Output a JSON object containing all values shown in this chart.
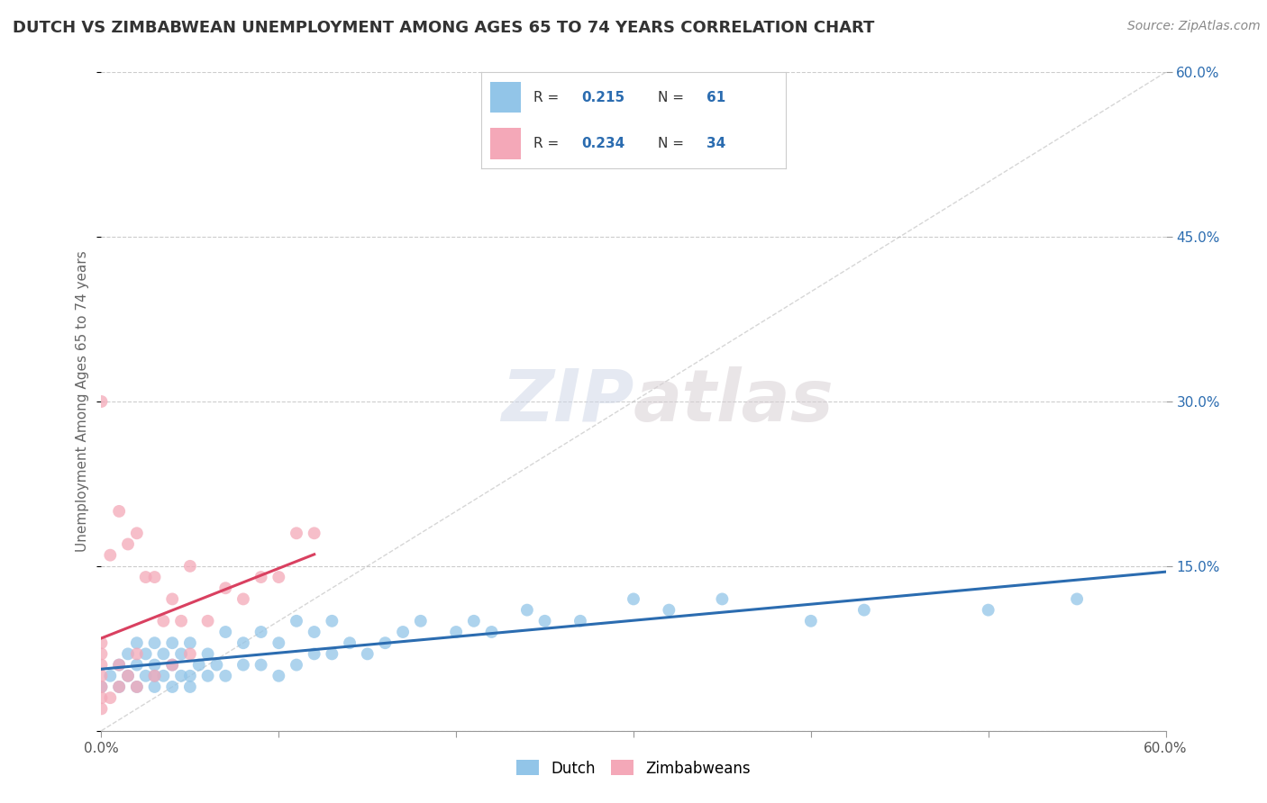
{
  "title": "DUTCH VS ZIMBABWEAN UNEMPLOYMENT AMONG AGES 65 TO 74 YEARS CORRELATION CHART",
  "source": "Source: ZipAtlas.com",
  "ylabel": "Unemployment Among Ages 65 to 74 years",
  "xlim": [
    0.0,
    0.6
  ],
  "ylim": [
    0.0,
    0.6
  ],
  "yticks": [
    0.0,
    0.15,
    0.3,
    0.45,
    0.6
  ],
  "xtick_left_label": "0.0%",
  "xtick_right_label": "60.0%",
  "right_ytick_labels": [
    "60.0%",
    "45.0%",
    "30.0%",
    "15.0%"
  ],
  "right_ytick_vals": [
    0.6,
    0.45,
    0.3,
    0.15
  ],
  "dutch_R": "0.215",
  "dutch_N": "61",
  "zimb_R": "0.234",
  "zimb_N": "34",
  "dutch_color": "#92C5E8",
  "zimb_color": "#F4A8B8",
  "dutch_line_color": "#2B6CB0",
  "zimb_line_color": "#D94060",
  "diag_line_color": "#BBBBBB",
  "grid_color": "#CCCCCC",
  "background_color": "#FFFFFF",
  "watermark_zip": "ZIP",
  "watermark_atlas": "atlas",
  "legend_color": "#2B6CB0",
  "dutch_x": [
    0.0,
    0.005,
    0.01,
    0.01,
    0.015,
    0.015,
    0.02,
    0.02,
    0.02,
    0.025,
    0.025,
    0.03,
    0.03,
    0.03,
    0.03,
    0.035,
    0.035,
    0.04,
    0.04,
    0.04,
    0.045,
    0.045,
    0.05,
    0.05,
    0.05,
    0.055,
    0.06,
    0.06,
    0.065,
    0.07,
    0.07,
    0.08,
    0.08,
    0.09,
    0.09,
    0.1,
    0.1,
    0.11,
    0.11,
    0.12,
    0.12,
    0.13,
    0.13,
    0.14,
    0.15,
    0.16,
    0.17,
    0.18,
    0.2,
    0.21,
    0.22,
    0.24,
    0.25,
    0.27,
    0.3,
    0.32,
    0.35,
    0.4,
    0.43,
    0.5,
    0.55
  ],
  "dutch_y": [
    0.04,
    0.05,
    0.04,
    0.06,
    0.05,
    0.07,
    0.04,
    0.06,
    0.08,
    0.05,
    0.07,
    0.04,
    0.05,
    0.06,
    0.08,
    0.05,
    0.07,
    0.04,
    0.06,
    0.08,
    0.05,
    0.07,
    0.04,
    0.05,
    0.08,
    0.06,
    0.05,
    0.07,
    0.06,
    0.05,
    0.09,
    0.06,
    0.08,
    0.06,
    0.09,
    0.05,
    0.08,
    0.06,
    0.1,
    0.07,
    0.09,
    0.07,
    0.1,
    0.08,
    0.07,
    0.08,
    0.09,
    0.1,
    0.09,
    0.1,
    0.09,
    0.11,
    0.1,
    0.1,
    0.12,
    0.11,
    0.12,
    0.1,
    0.11,
    0.11,
    0.12
  ],
  "zimb_x": [
    0.0,
    0.0,
    0.0,
    0.0,
    0.0,
    0.0,
    0.0,
    0.0,
    0.005,
    0.005,
    0.01,
    0.01,
    0.01,
    0.015,
    0.015,
    0.02,
    0.02,
    0.02,
    0.025,
    0.03,
    0.03,
    0.035,
    0.04,
    0.04,
    0.045,
    0.05,
    0.05,
    0.06,
    0.07,
    0.08,
    0.09,
    0.1,
    0.11,
    0.12
  ],
  "zimb_y": [
    0.02,
    0.03,
    0.04,
    0.05,
    0.06,
    0.07,
    0.08,
    0.3,
    0.03,
    0.16,
    0.04,
    0.06,
    0.2,
    0.05,
    0.17,
    0.04,
    0.07,
    0.18,
    0.14,
    0.05,
    0.14,
    0.1,
    0.06,
    0.12,
    0.1,
    0.07,
    0.15,
    0.1,
    0.13,
    0.12,
    0.14,
    0.14,
    0.18,
    0.18
  ]
}
